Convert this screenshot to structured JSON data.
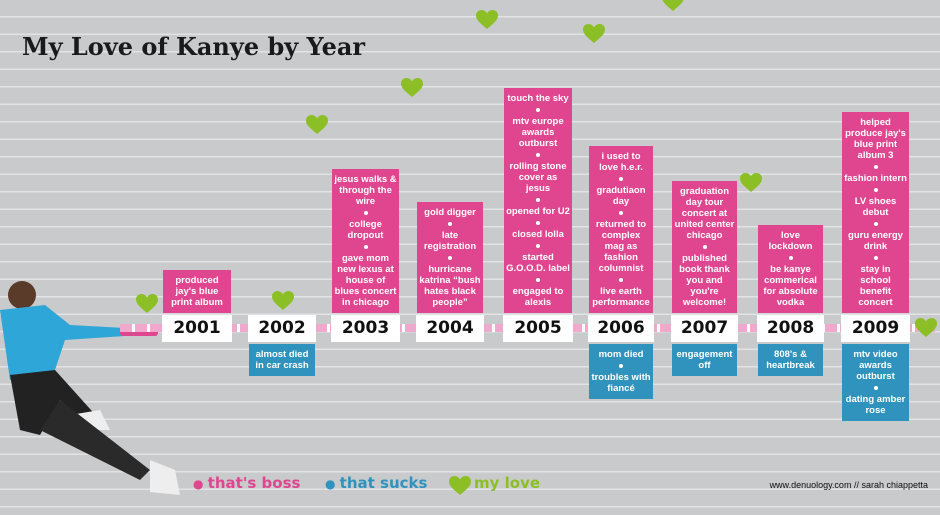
{
  "title": "My Love of Kanye by Year",
  "years": [
    {
      "year": "2001",
      "good": [
        "produced jay's blue print album"
      ],
      "bad": []
    },
    {
      "year": "2002",
      "good": [],
      "bad": [
        "almost died in car crash"
      ]
    },
    {
      "year": "2003",
      "good": [
        "jesus walks & through the wire",
        "college dropout",
        "gave mom new lexus at house of blues concert in chicago"
      ],
      "bad": []
    },
    {
      "year": "2004",
      "good": [
        "gold digger",
        "late registration",
        "hurricane katrina “bush hates black people”"
      ],
      "bad": []
    },
    {
      "year": "2005",
      "good": [
        "touch the sky",
        "mtv europe awards outburst",
        "rolling stone cover as jesus",
        "opened for U2",
        "closed lolla",
        "started G.O.O.D. label",
        "engaged to alexis"
      ],
      "bad": []
    },
    {
      "year": "2006",
      "good": [
        "i used to love h.e.r.",
        "gradutiaon day",
        "returned to complex mag as fashion columnist",
        "live earth performance"
      ],
      "bad": [
        "mom died",
        "troubles with fiancé"
      ]
    },
    {
      "year": "2007",
      "good": [
        "graduation day tour concert at united center chicago",
        "published book thank you and you're welcome!"
      ],
      "bad": [
        "engagement off"
      ]
    },
    {
      "year": "2008",
      "good": [
        "love lockdown",
        "be kanye commerical for absolute vodka"
      ],
      "bad": [
        "808's & heartbreak"
      ]
    },
    {
      "year": "2009",
      "good": [
        "helped produce jay's blue print album 3",
        "fashion intern",
        "LV shoes debut",
        "guru energy drink",
        "stay in school benefit concert"
      ],
      "bad": [
        "mtv video awards outburst",
        "dating amber rose"
      ]
    }
  ],
  "legend": {
    "good": "that's boss",
    "bad": "that sucks",
    "love": "my love"
  },
  "credit": "www.denuology.com // sarah chiappetta"
}
